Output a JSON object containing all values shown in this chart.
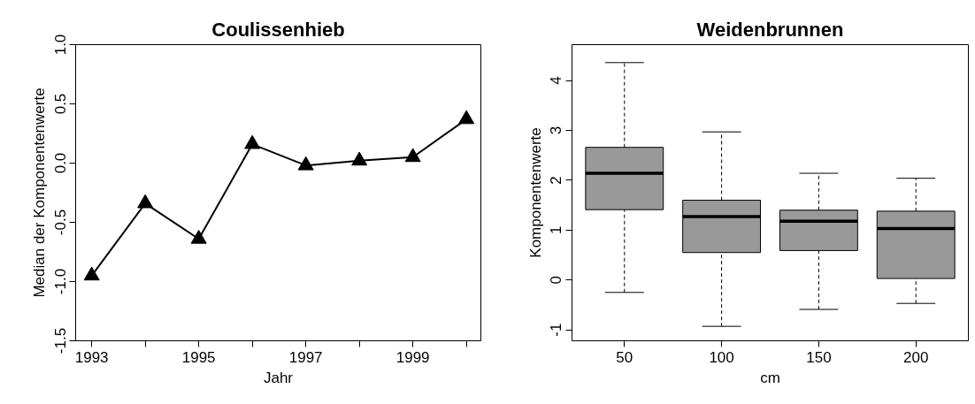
{
  "chart_data": [
    {
      "type": "line",
      "title": "Coulissenhieb",
      "xlabel": "Jahr",
      "ylabel": "Median der Komponentenwerte",
      "x": [
        1993,
        1994,
        1995,
        1996,
        1997,
        1998,
        1999,
        2000
      ],
      "series": [
        {
          "color": "#000000",
          "values": [
            -0.95,
            -0.34,
            -0.64,
            0.16,
            -0.02,
            0.02,
            0.05,
            0.37
          ]
        }
      ],
      "marker": "triangle",
      "line_style": "solid",
      "grid": false,
      "xlim": [
        1992.7,
        2000.27
      ],
      "ylim": [
        -1.5,
        1.0
      ],
      "xticks": [
        1993,
        {
          "value": 1994,
          "label": null
        },
        1995,
        {
          "value": 1996,
          "label": null
        },
        1997,
        {
          "value": 1998,
          "label": null
        },
        1999,
        {
          "value": 2000,
          "label": null
        }
      ],
      "yticks": [
        {
          "value": -1.5,
          "label": "-1.5"
        },
        {
          "value": -1.0,
          "label": "-1.0"
        },
        {
          "value": -0.5,
          "label": "-0.5"
        },
        {
          "value": 0.0,
          "label": "0.0"
        },
        {
          "value": 0.5,
          "label": "0.5"
        },
        {
          "value": 1.0,
          "label": "1.0"
        }
      ]
    },
    {
      "type": "box",
      "title": "Weidenbrunnen",
      "xlabel": "cm",
      "ylabel": "Komponentenwerte",
      "categories": [
        "50",
        "100",
        "150",
        "200"
      ],
      "series": [
        {
          "color": "#999999",
          "boxes": [
            {
              "low": -0.25,
              "q1": 1.41,
              "median": 2.14,
              "q3": 2.66,
              "high": 4.36
            },
            {
              "low": -0.93,
              "q1": 0.55,
              "median": 1.27,
              "q3": 1.6,
              "high": 2.97
            },
            {
              "low": -0.59,
              "q1": 0.59,
              "median": 1.18,
              "q3": 1.4,
              "high": 2.14
            },
            {
              "low": -0.47,
              "q1": 0.03,
              "median": 1.03,
              "q3": 1.38,
              "high": 2.04
            }
          ]
        }
      ],
      "grid": false,
      "ylim": [
        -1.22,
        4.72
      ],
      "yticks": [
        -1,
        0,
        1,
        2,
        3,
        4
      ]
    }
  ]
}
